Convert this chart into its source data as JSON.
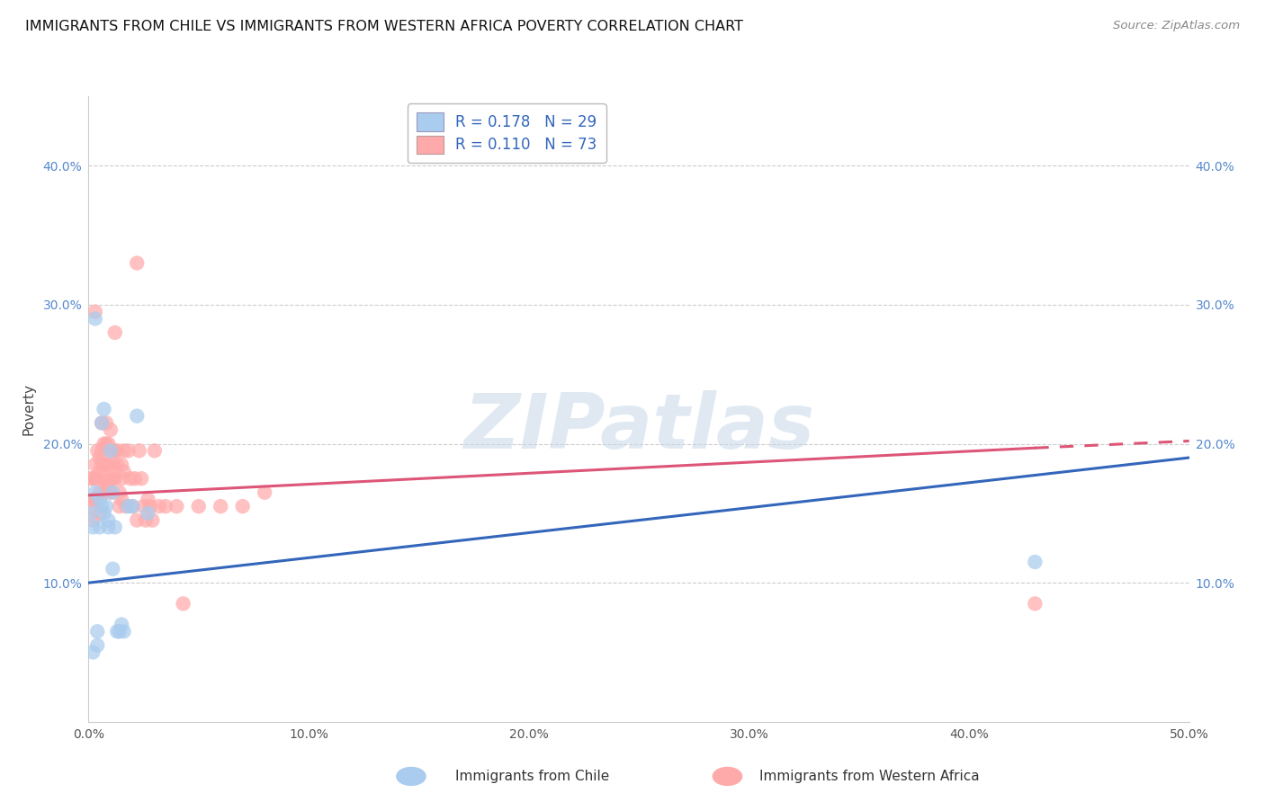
{
  "title": "IMMIGRANTS FROM CHILE VS IMMIGRANTS FROM WESTERN AFRICA POVERTY CORRELATION CHART",
  "source": "Source: ZipAtlas.com",
  "xlabel_chile": "Immigrants from Chile",
  "xlabel_wafr": "Immigrants from Western Africa",
  "ylabel": "Poverty",
  "xlim": [
    0.0,
    0.5
  ],
  "ylim": [
    0.0,
    0.45
  ],
  "y_ticks": [
    0.1,
    0.2,
    0.3,
    0.4
  ],
  "x_ticks": [
    0.0,
    0.1,
    0.2,
    0.3,
    0.4,
    0.5
  ],
  "chile_R": 0.178,
  "chile_N": 29,
  "wafr_R": 0.11,
  "wafr_N": 73,
  "chile_color": "#aaccee",
  "chile_line_color": "#3366bb",
  "wafr_color": "#ffaaaa",
  "wafr_line_color": "#dd5577",
  "bg_color": "#ffffff",
  "grid_color": "#cccccc",
  "watermark_color": "#c8d8e8",
  "chile_x": [
    0.001,
    0.002,
    0.002,
    0.003,
    0.004,
    0.004,
    0.005,
    0.005,
    0.006,
    0.006,
    0.007,
    0.007,
    0.008,
    0.009,
    0.009,
    0.01,
    0.011,
    0.011,
    0.012,
    0.013,
    0.014,
    0.015,
    0.016,
    0.018,
    0.02,
    0.022,
    0.027,
    0.43,
    0.003
  ],
  "chile_y": [
    0.15,
    0.14,
    0.05,
    0.165,
    0.065,
    0.055,
    0.16,
    0.14,
    0.155,
    0.215,
    0.225,
    0.15,
    0.155,
    0.145,
    0.14,
    0.195,
    0.165,
    0.11,
    0.14,
    0.065,
    0.065,
    0.07,
    0.065,
    0.155,
    0.155,
    0.22,
    0.15,
    0.115,
    0.29
  ],
  "wafr_x": [
    0.001,
    0.001,
    0.002,
    0.002,
    0.002,
    0.003,
    0.003,
    0.003,
    0.003,
    0.004,
    0.004,
    0.004,
    0.005,
    0.005,
    0.005,
    0.005,
    0.006,
    0.006,
    0.006,
    0.007,
    0.007,
    0.007,
    0.007,
    0.008,
    0.008,
    0.008,
    0.008,
    0.009,
    0.009,
    0.009,
    0.01,
    0.01,
    0.01,
    0.01,
    0.011,
    0.011,
    0.011,
    0.012,
    0.012,
    0.013,
    0.013,
    0.014,
    0.014,
    0.015,
    0.015,
    0.015,
    0.016,
    0.016,
    0.017,
    0.018,
    0.019,
    0.02,
    0.021,
    0.022,
    0.023,
    0.024,
    0.025,
    0.026,
    0.027,
    0.028,
    0.029,
    0.03,
    0.032,
    0.035,
    0.04,
    0.043,
    0.05,
    0.06,
    0.07,
    0.08,
    0.43,
    0.012,
    0.022
  ],
  "wafr_y": [
    0.175,
    0.155,
    0.175,
    0.16,
    0.145,
    0.295,
    0.185,
    0.175,
    0.16,
    0.195,
    0.175,
    0.16,
    0.19,
    0.18,
    0.165,
    0.15,
    0.215,
    0.195,
    0.185,
    0.2,
    0.185,
    0.175,
    0.165,
    0.215,
    0.2,
    0.185,
    0.17,
    0.2,
    0.185,
    0.17,
    0.21,
    0.195,
    0.175,
    0.165,
    0.195,
    0.185,
    0.175,
    0.195,
    0.175,
    0.195,
    0.185,
    0.165,
    0.155,
    0.185,
    0.175,
    0.16,
    0.195,
    0.18,
    0.155,
    0.195,
    0.175,
    0.155,
    0.175,
    0.145,
    0.195,
    0.175,
    0.155,
    0.145,
    0.16,
    0.155,
    0.145,
    0.195,
    0.155,
    0.155,
    0.155,
    0.085,
    0.155,
    0.155,
    0.155,
    0.165,
    0.085,
    0.28,
    0.33
  ],
  "chile_line_start_x": 0.0,
  "chile_line_end_x": 0.5,
  "chile_line_start_y": 0.1,
  "chile_line_end_y": 0.19,
  "wafr_line_start_x": 0.0,
  "wafr_line_solid_end_x": 0.43,
  "wafr_line_end_x": 0.5,
  "wafr_line_start_y": 0.163,
  "wafr_line_solid_end_y": 0.197,
  "wafr_line_end_y": 0.202
}
